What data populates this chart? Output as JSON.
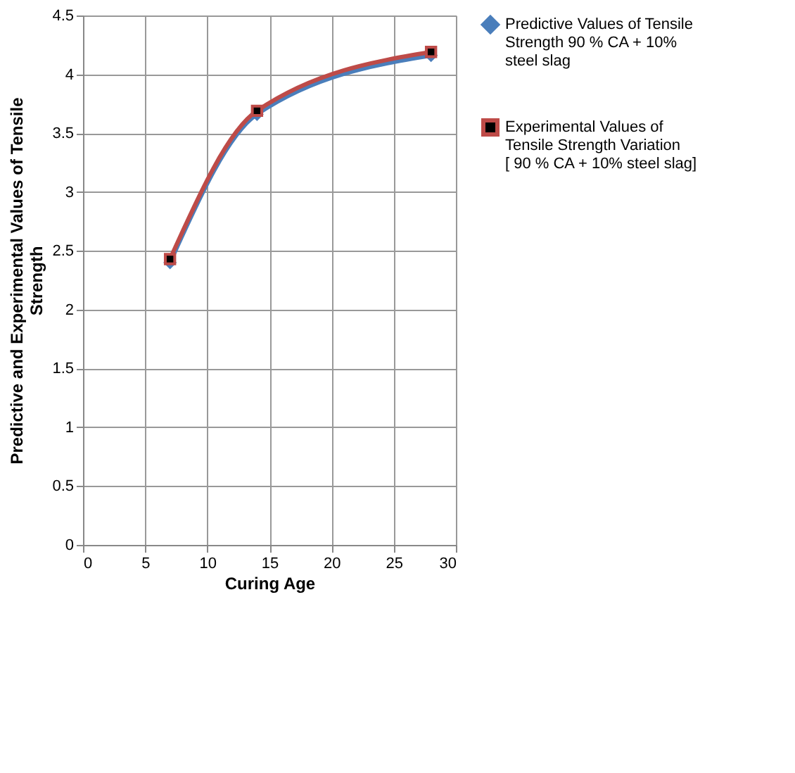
{
  "chart_data": {
    "type": "line",
    "xlabel": "Curing Age",
    "ylabel": "Predictive and Experimental Values of Tensile Strength",
    "x": [
      7,
      14,
      28
    ],
    "series": [
      {
        "name": "Predictive Values of Tensile Strength  90 % CA + 10% steel slag",
        "color": "#4a7ebb",
        "values": [
          2.4,
          3.66,
          4.16
        ],
        "marker": "diamond"
      },
      {
        "name": "Experimental Values of Tensile Strength   Variation [ 90 % CA + 10% steel slag]",
        "color": "#be4b48",
        "values": [
          2.43,
          3.69,
          4.19
        ],
        "marker": "square"
      }
    ],
    "xlim": [
      0,
      30
    ],
    "xticks": [
      0,
      5,
      10,
      15,
      20,
      25,
      30
    ],
    "ylim": [
      0,
      4.5
    ],
    "yticks": [
      0,
      0.5,
      1,
      1.5,
      2,
      2.5,
      3,
      3.5,
      4,
      4.5
    ],
    "grid": true,
    "legend": "right",
    "line_style": "solid"
  }
}
